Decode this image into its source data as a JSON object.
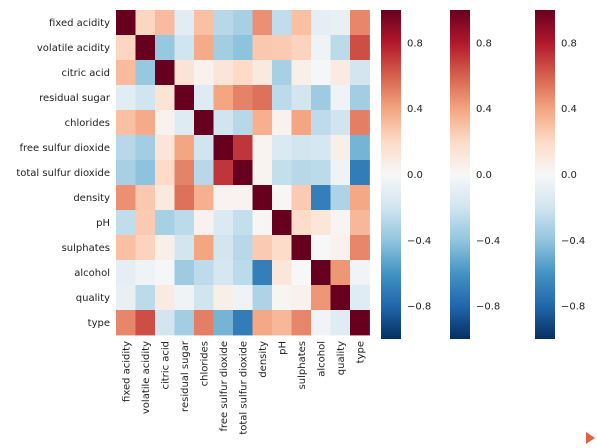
{
  "chart_data": {
    "type": "heatmap",
    "title": "",
    "xlabel": "",
    "ylabel": "",
    "variables": [
      "fixed acidity",
      "volatile acidity",
      "citric acid",
      "residual sugar",
      "chlorides",
      "free sulfur dioxide",
      "total sulfur dioxide",
      "density",
      "pH",
      "sulphates",
      "alcohol",
      "quality",
      "type"
    ],
    "matrix": [
      [
        1.0,
        0.22,
        0.32,
        -0.11,
        0.3,
        -0.28,
        -0.33,
        0.46,
        -0.25,
        0.3,
        -0.1,
        -0.08,
        0.49
      ],
      [
        0.22,
        1.0,
        -0.38,
        -0.2,
        0.38,
        -0.35,
        -0.41,
        0.27,
        0.26,
        0.23,
        -0.04,
        -0.27,
        0.65
      ],
      [
        0.32,
        -0.38,
        1.0,
        0.14,
        0.04,
        0.13,
        0.2,
        0.1,
        -0.33,
        0.06,
        -0.01,
        0.09,
        -0.19
      ],
      [
        -0.11,
        -0.2,
        0.14,
        1.0,
        -0.13,
        0.4,
        0.5,
        0.55,
        -0.27,
        -0.19,
        -0.36,
        -0.04,
        -0.35
      ],
      [
        0.3,
        0.38,
        0.04,
        -0.13,
        1.0,
        -0.2,
        -0.28,
        0.36,
        0.04,
        0.4,
        -0.26,
        -0.2,
        0.51
      ],
      [
        -0.28,
        -0.35,
        0.13,
        0.4,
        -0.2,
        1.0,
        0.72,
        0.03,
        -0.15,
        -0.19,
        -0.18,
        0.06,
        -0.47
      ],
      [
        -0.33,
        -0.41,
        0.2,
        0.5,
        -0.28,
        0.72,
        1.0,
        0.03,
        -0.24,
        -0.28,
        -0.27,
        -0.04,
        -0.7
      ],
      [
        0.46,
        0.27,
        0.1,
        0.55,
        0.36,
        0.03,
        0.03,
        1.0,
        0.01,
        0.26,
        -0.69,
        -0.31,
        0.39
      ],
      [
        -0.25,
        0.26,
        -0.33,
        -0.27,
        0.04,
        -0.15,
        -0.24,
        0.01,
        1.0,
        0.19,
        0.12,
        0.02,
        0.33
      ],
      [
        0.3,
        0.23,
        0.06,
        -0.19,
        0.4,
        -0.19,
        -0.28,
        0.26,
        0.19,
        1.0,
        -0.0,
        0.04,
        0.49
      ],
      [
        -0.1,
        -0.04,
        -0.01,
        -0.36,
        -0.26,
        -0.18,
        -0.27,
        -0.69,
        0.12,
        -0.0,
        1.0,
        0.44,
        -0.03
      ],
      [
        -0.08,
        -0.27,
        0.09,
        -0.04,
        -0.2,
        0.06,
        -0.04,
        -0.31,
        0.02,
        0.04,
        0.44,
        1.0,
        -0.12
      ],
      [
        0.49,
        0.65,
        -0.19,
        -0.35,
        0.51,
        -0.47,
        -0.7,
        0.39,
        0.33,
        0.49,
        -0.03,
        -0.12,
        1.0
      ]
    ],
    "colorbar": {
      "count": 3,
      "range": [
        -1.0,
        1.0
      ],
      "ticks": [
        0.8,
        0.4,
        0.0,
        -0.4,
        -0.8
      ],
      "tick_labels": [
        "0.8",
        "0.4",
        "0.0",
        "−0.4",
        "−0.8"
      ],
      "colormap": "RdBu_r"
    },
    "grid": false
  },
  "colors": {
    "low": "#053061",
    "mid": "#f7f7f7",
    "high": "#67001f"
  }
}
